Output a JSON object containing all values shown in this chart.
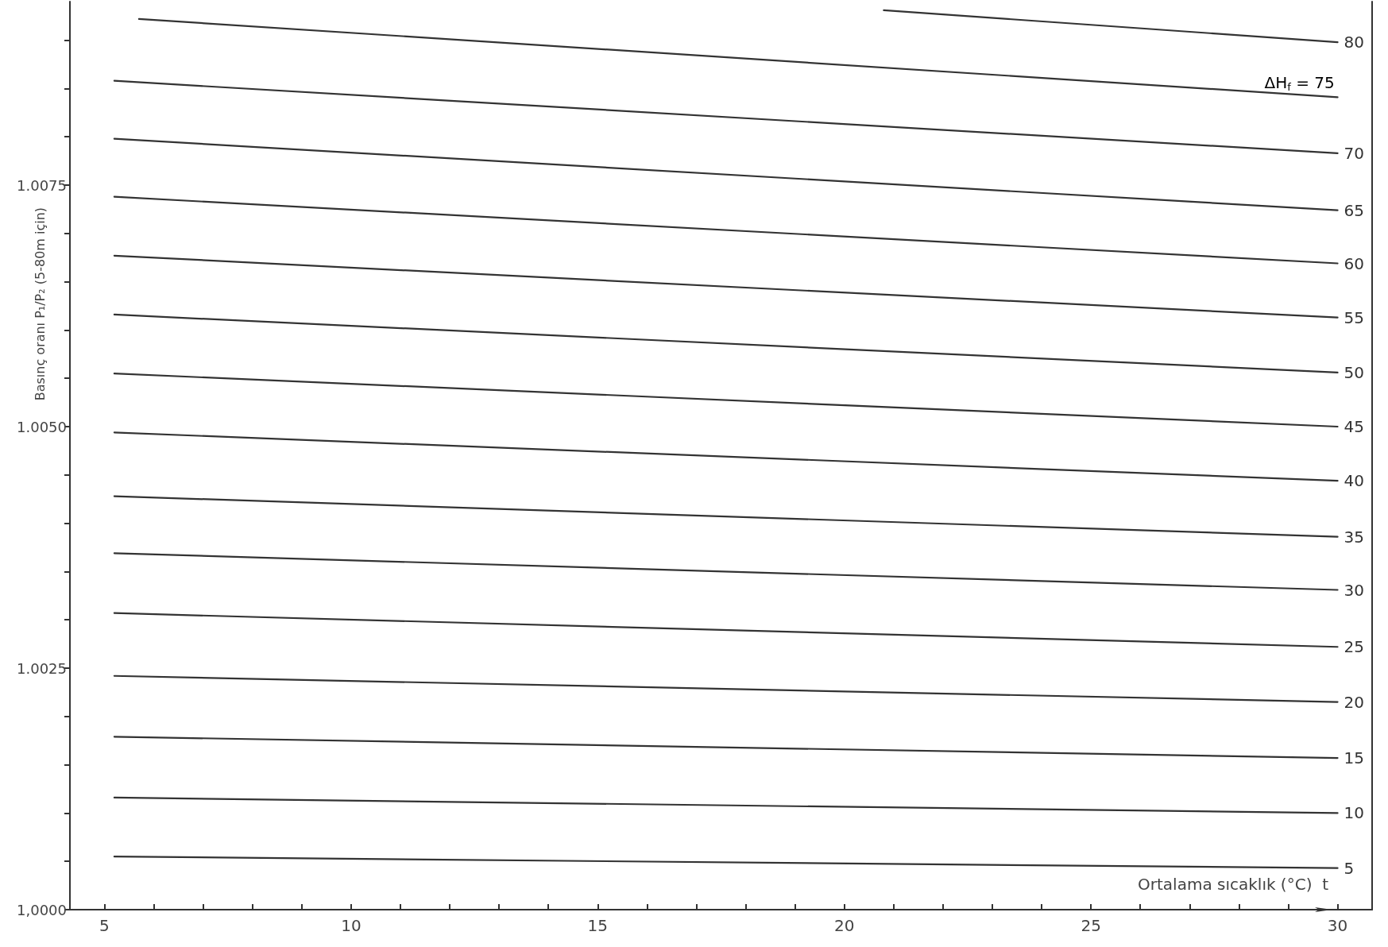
{
  "chart_data": {
    "type": "line",
    "xlabel": "Ortalama sıcaklık (°C)  t",
    "ylabel": "Basınç oranı P₁/P₂ (5-80m için)",
    "annotations": [
      {
        "text": "ΔH$_{f}$ = 75",
        "x": 30,
        "y": 1.00841
      }
    ],
    "xlim": [
      4.3,
      30.7
    ],
    "xticks": [
      5,
      {
        "value": 6,
        "label": null
      },
      {
        "value": 7,
        "label": null
      },
      {
        "value": 8,
        "label": null
      },
      {
        "value": 9,
        "label": null
      },
      10,
      {
        "value": 11,
        "label": null
      },
      {
        "value": 12,
        "label": null
      },
      {
        "value": 13,
        "label": null
      },
      {
        "value": 14,
        "label": null
      },
      15,
      {
        "value": 16,
        "label": null
      },
      {
        "value": 17,
        "label": null
      },
      {
        "value": 18,
        "label": null
      },
      {
        "value": 19,
        "label": null
      },
      20,
      {
        "value": 21,
        "label": null
      },
      {
        "value": 22,
        "label": null
      },
      {
        "value": 23,
        "label": null
      },
      {
        "value": 24,
        "label": null
      },
      25,
      {
        "value": 26,
        "label": null
      },
      {
        "value": 27,
        "label": null
      },
      {
        "value": 28,
        "label": null
      },
      {
        "value": 29,
        "label": null
      },
      30
    ],
    "ylim": [
      1.0,
      1.0094
    ],
    "yticks": [
      {
        "value": 1.0,
        "label": "1,0000"
      },
      {
        "value": 1.0005,
        "label": null
      },
      {
        "value": 1.001,
        "label": null
      },
      {
        "value": 1.0015,
        "label": null
      },
      {
        "value": 1.002,
        "label": null
      },
      {
        "value": 1.0025,
        "label": "1.0025"
      },
      {
        "value": 1.003,
        "label": null
      },
      {
        "value": 1.0035,
        "label": null
      },
      {
        "value": 1.004,
        "label": null
      },
      {
        "value": 1.0045,
        "label": null
      },
      {
        "value": 1.005,
        "label": "1.0050"
      },
      {
        "value": 1.0055,
        "label": null
      },
      {
        "value": 1.006,
        "label": null
      },
      {
        "value": 1.0065,
        "label": null
      },
      {
        "value": 1.007,
        "label": null
      },
      {
        "value": 1.0075,
        "label": "1.0075"
      },
      {
        "value": 1.008,
        "label": null
      },
      {
        "value": 1.0085,
        "label": null
      },
      {
        "value": 1.009,
        "label": null
      }
    ],
    "grid": false,
    "legend": false,
    "marker": "none",
    "line_style": "solid",
    "series": [
      {
        "name": "5",
        "color": "#333333",
        "x": [
          5.2,
          30
        ],
        "values": [
          1.00055,
          1.00043
        ]
      },
      {
        "name": "10",
        "color": "#333333",
        "x": [
          5.2,
          30
        ],
        "values": [
          1.00116,
          1.001
        ]
      },
      {
        "name": "15",
        "color": "#333333",
        "x": [
          5.2,
          30
        ],
        "values": [
          1.00179,
          1.00157
        ]
      },
      {
        "name": "20",
        "color": "#333333",
        "x": [
          5.2,
          30
        ],
        "values": [
          1.00242,
          1.00215
        ]
      },
      {
        "name": "25",
        "color": "#333333",
        "x": [
          5.2,
          30
        ],
        "values": [
          1.00307,
          1.00272
        ]
      },
      {
        "name": "30",
        "color": "#333333",
        "x": [
          5.2,
          30
        ],
        "values": [
          1.00369,
          1.00331
        ]
      },
      {
        "name": "35",
        "color": "#333333",
        "x": [
          5.2,
          30
        ],
        "values": [
          1.00428,
          1.00386
        ]
      },
      {
        "name": "40",
        "color": "#333333",
        "x": [
          5.2,
          30
        ],
        "values": [
          1.00494,
          1.00444
        ]
      },
      {
        "name": "45",
        "color": "#333333",
        "x": [
          5.2,
          30
        ],
        "values": [
          1.00555,
          1.005
        ]
      },
      {
        "name": "50",
        "color": "#333333",
        "x": [
          5.2,
          30
        ],
        "values": [
          1.00616,
          1.00556
        ]
      },
      {
        "name": "55",
        "color": "#333333",
        "x": [
          5.2,
          30
        ],
        "values": [
          1.00677,
          1.00613
        ]
      },
      {
        "name": "60",
        "color": "#333333",
        "x": [
          5.2,
          30
        ],
        "values": [
          1.00738,
          1.00669
        ]
      },
      {
        "name": "65",
        "color": "#333333",
        "x": [
          5.2,
          30
        ],
        "values": [
          1.00798,
          1.00724
        ]
      },
      {
        "name": "70",
        "color": "#333333",
        "x": [
          5.2,
          30
        ],
        "values": [
          1.00858,
          1.00783
        ]
      },
      {
        "color": "#333333",
        "x": [
          5.7,
          30
        ],
        "values": [
          1.00922,
          1.00841
        ]
      },
      {
        "name": "80",
        "color": "#333333",
        "x": [
          20.8,
          30
        ],
        "values": [
          1.00931,
          1.00898
        ]
      }
    ]
  }
}
